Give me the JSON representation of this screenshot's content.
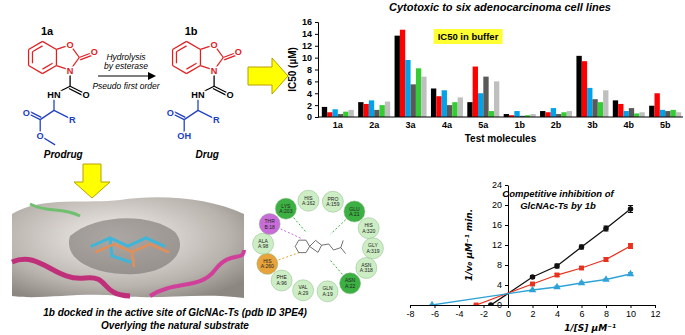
{
  "scheme": {
    "structures": [
      {
        "label": "1a",
        "caption": "Prodrug",
        "atoms": [
          "O",
          "O",
          "N",
          "O",
          "HN",
          "R",
          "O",
          "O"
        ]
      },
      {
        "label": "1b",
        "caption": "Drug",
        "atoms": [
          "O",
          "O",
          "N",
          "O",
          "HN",
          "R",
          "O",
          "OH"
        ]
      }
    ],
    "arrow_text": [
      "Hydrolysis",
      "by esterase",
      "Pseudo first order"
    ]
  },
  "chart_data": [
    {
      "type": "bar",
      "title": "Cytotoxic to six adenocarcinoma cell lines",
      "subtitle": "IC50 in buffer",
      "y_label": "IC50 (µM)",
      "x_label": "Test molecules",
      "categories": [
        "1a",
        "2a",
        "3a",
        "4a",
        "5a",
        "1b",
        "2b",
        "3b",
        "4b",
        "5b"
      ],
      "series": [
        {
          "color": "#000000",
          "values": [
            1.7,
            2.5,
            13.7,
            4.8,
            2.5,
            0.5,
            1.0,
            10.3,
            2.8,
            1.9
          ]
        },
        {
          "color": "#ff0000",
          "values": [
            0.8,
            2.2,
            14.7,
            3.5,
            8.5,
            0.3,
            0.8,
            9.4,
            2.2,
            4.0
          ]
        },
        {
          "color": "#00a2e8",
          "values": [
            1.3,
            2.8,
            9.6,
            4.5,
            4.0,
            1.0,
            1.5,
            4.9,
            1.0,
            1.2
          ]
        },
        {
          "color": "#595959",
          "values": [
            0.5,
            1.2,
            5.5,
            2.0,
            6.8,
            0.2,
            0.5,
            3.0,
            1.5,
            1.0
          ]
        },
        {
          "color": "#33cc33",
          "values": [
            0.9,
            2.0,
            8.2,
            2.5,
            1.0,
            0.3,
            0.8,
            2.5,
            0.6,
            1.2
          ]
        },
        {
          "color": "#bfbfbf",
          "values": [
            1.2,
            2.6,
            6.8,
            3.3,
            6.0,
            0.5,
            1.0,
            4.5,
            0.8,
            0.8
          ]
        }
      ],
      "ylim": [
        0,
        16
      ],
      "yticks": [
        0,
        2,
        4,
        6,
        8,
        10,
        12,
        14,
        16
      ],
      "grid": false
    },
    {
      "type": "line",
      "title": [
        "Competitive inhibition of",
        "GlcNAc-Ts by 1b"
      ],
      "y_label": "1/v₀ μM⁻¹ min.",
      "x_label": "1/[S] μM⁻¹",
      "series": [
        {
          "color": "#111111",
          "marker": "circle",
          "x": [
            -1.4,
            2,
            4,
            6,
            8,
            10
          ],
          "values": [
            0,
            5.6,
            7.8,
            11.6,
            15.3,
            19.2
          ],
          "errors": [
            0,
            0.3,
            0.4,
            0.4,
            0.5,
            0.7
          ]
        },
        {
          "color": "#e8321e",
          "marker": "square",
          "x": [
            -2.6,
            2,
            4,
            6,
            8,
            10
          ],
          "values": [
            0,
            4.2,
            6.0,
            7.4,
            9.1,
            11.8
          ],
          "errors": [
            0,
            0.2,
            0.3,
            0.3,
            0.4,
            0.5
          ]
        },
        {
          "color": "#2fa3d6",
          "marker": "triangle",
          "x": [
            -6.2,
            2,
            4,
            6,
            8,
            10
          ],
          "values": [
            0,
            3.0,
            3.6,
            4.4,
            5.1,
            6.2
          ],
          "errors": [
            0,
            0.1,
            0.2,
            0.2,
            0.2,
            0.3
          ]
        }
      ],
      "xlim": [
        -8,
        12
      ],
      "xticks": [
        -8,
        -6,
        -4,
        -2,
        0,
        2,
        4,
        6,
        8,
        10,
        12
      ],
      "ylim": [
        0,
        24
      ],
      "yticks": [
        0,
        4,
        8,
        12,
        16,
        20,
        24
      ],
      "grid": false
    }
  ],
  "docking": {
    "residues": [
      {
        "label": "HIS A:162",
        "color": "#cdeec4"
      },
      {
        "label": "PRO A:159",
        "color": "#cdeec4"
      },
      {
        "label": "GLU A:21",
        "color": "#3cb043"
      },
      {
        "label": "HIS A:320",
        "color": "#cdeec4"
      },
      {
        "label": "GLY A:319",
        "color": "#cdeec4"
      },
      {
        "label": "ASN A:318",
        "color": "#cdeec4"
      },
      {
        "label": "ASN A:22",
        "color": "#3cb043"
      },
      {
        "label": "GLN A:19",
        "color": "#cdeec4"
      },
      {
        "label": "VAL A:29",
        "color": "#cdeec4"
      },
      {
        "label": "PHE A:96",
        "color": "#cdeec4"
      },
      {
        "label": "HIS A:260",
        "color": "#e8a33a"
      },
      {
        "label": "ALA A:98",
        "color": "#cdeec4"
      },
      {
        "label": "THR B:18",
        "color": "#c86dd7"
      },
      {
        "label": "LYS A:203",
        "color": "#3cb043"
      }
    ],
    "caption": [
      "1b docked in the active site of GlcNAc-Ts (pdb ID 3PE4)",
      "Overlying the natural substrate"
    ]
  }
}
